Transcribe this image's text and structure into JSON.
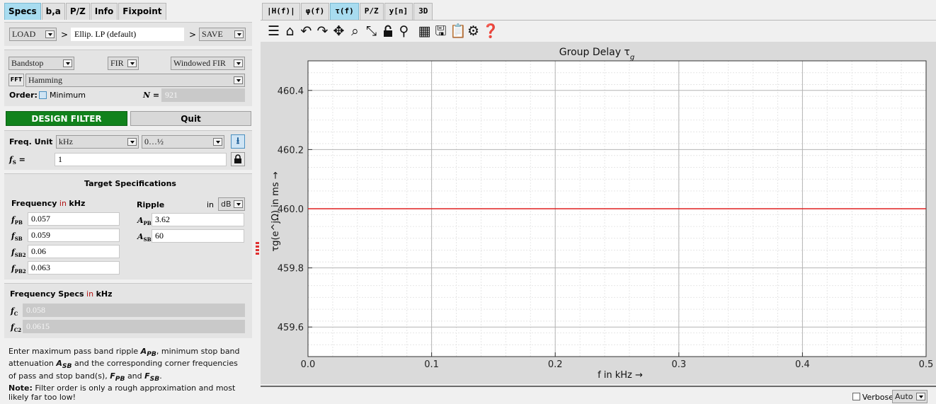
{
  "left_tabs": [
    "Specs",
    "b,a",
    "P/Z",
    "Info",
    "Fixpoint"
  ],
  "file_row": {
    "load": "LOAD",
    "arrow1": ">",
    "filter_name": "Ellip. LP (default)",
    "arrow2": ">",
    "save": "SAVE"
  },
  "filter_type": {
    "response": "Bandstop",
    "class": "FIR",
    "method": "Windowed FIR",
    "fft_icon": "FFT",
    "window": "Hamming"
  },
  "order": {
    "label": "Order:",
    "min_label": "Minimum",
    "n_label": "N =",
    "n_value": "921"
  },
  "buttons": {
    "design": "DESIGN FILTER",
    "quit": "Quit"
  },
  "freq_unit": {
    "label": "Freq. Unit",
    "unit": "kHz",
    "range": "0…½",
    "fs_label": "f",
    "fs_sub": "S",
    "fs_eq": "=",
    "fs_value": "1"
  },
  "target": {
    "title": "Target Specifications",
    "freq_header": "Frequency",
    "freq_unit_prefix": "in",
    "freq_unit": "kHz",
    "ripple_header": "Ripple",
    "ripple_in": "in",
    "ripple_unit": "dB",
    "freqs": [
      {
        "sub": "PB",
        "value": "0.057"
      },
      {
        "sub": "SB",
        "value": "0.059"
      },
      {
        "sub": "SB2",
        "value": "0.06"
      },
      {
        "sub": "PB2",
        "value": "0.063"
      }
    ],
    "ripples": [
      {
        "sub": "PB",
        "value": "3.62"
      },
      {
        "sub": "SB",
        "value": "60"
      }
    ]
  },
  "freq_specs": {
    "title": "Frequency Specs",
    "unit_prefix": "in",
    "unit": "kHz",
    "items": [
      {
        "sub": "C",
        "value": "0.058"
      },
      {
        "sub": "C2",
        "value": "0.0615"
      }
    ]
  },
  "help": {
    "p1": "Enter maximum pass band ripple",
    "s1": "A",
    "s1sub": "PB",
    "p2": ", minimum stop band attenuation",
    "s2": "A",
    "s2sub": "SB",
    "p3": "and the corresponding corner frequencies of pass and stop band(s),",
    "s3": "F",
    "s3sub": "PB",
    "p4": "and",
    "s4": "F",
    "s4sub": "SB",
    "p5": ".",
    "note_label": "Note:",
    "note": "Filter order is only a rough approximation and most likely far too low!"
  },
  "right_tabs": [
    "|H(f)|",
    "φ(f)",
    "τ(f)",
    "P/Z",
    "y[n]",
    "3D"
  ],
  "toolbar_icons": [
    "menu-icon",
    "home-icon",
    "undo-icon",
    "redo-icon",
    "pan-icon",
    "zoom-icon",
    "autoscale-icon",
    "lock-icon",
    "marker-icon",
    "grid-icon",
    "save-icon",
    "clipboard-icon",
    "settings-icon",
    "help-icon"
  ],
  "bottom": {
    "verbose": "Verbose",
    "auto": "Auto"
  },
  "colors": {
    "accent_tab": "#a8dcf0",
    "design_button": "#11821c",
    "trace": "#e02020"
  },
  "chart_data": {
    "type": "line",
    "title": "Group Delay τ",
    "title_sub": "g",
    "xlabel": "f in kHz →",
    "ylabel": "τg(e^jΩ) in ms →",
    "xlim": [
      0.0,
      0.5
    ],
    "ylim": [
      459.5,
      460.5
    ],
    "xticks": [
      "0.0",
      "0.1",
      "0.2",
      "0.3",
      "0.4",
      "0.5"
    ],
    "yticks": [
      "459.6",
      "459.8",
      "460.0",
      "460.2",
      "460.4"
    ],
    "grid": true,
    "series": [
      {
        "x": [
          0.0,
          0.1,
          0.2,
          0.3,
          0.4,
          0.5
        ],
        "y": [
          460.0,
          460.0,
          460.0,
          460.0,
          460.0,
          460.0
        ]
      }
    ]
  }
}
